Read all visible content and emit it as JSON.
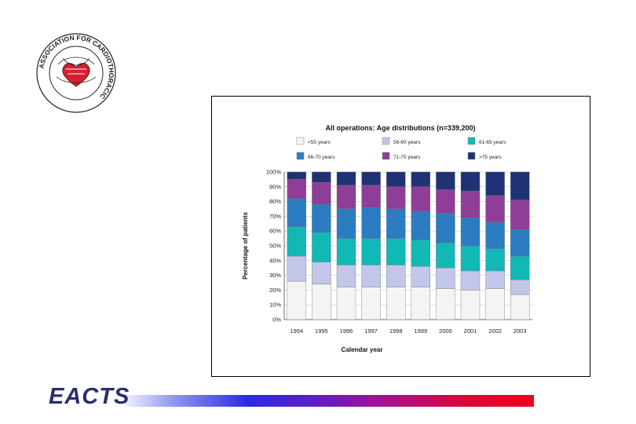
{
  "slide": {
    "logo_ring_text": "ASSOCIATION FOR CARDIOTHORACIC",
    "footer_brand": "EACTS"
  },
  "chart_data": {
    "type": "bar",
    "stacked": true,
    "title": "All operations: Age distributions (n=339,200)",
    "xlabel": "Calendar year",
    "ylabel": "Percentage of patients",
    "ylim": [
      0,
      100
    ],
    "y_ticks": [
      "0%",
      "10%",
      "20%",
      "30%",
      "40%",
      "50%",
      "60%",
      "70%",
      "80%",
      "90%",
      "100%"
    ],
    "legend_position": "top",
    "categories": [
      "1994",
      "1995",
      "1996",
      "1997",
      "1998",
      "1999",
      "2000",
      "2001",
      "2002",
      "2003"
    ],
    "series": [
      {
        "name": "<55 years",
        "color": "#f4f4f4",
        "values": [
          26,
          24,
          22,
          22,
          22,
          22,
          21,
          20,
          21,
          17
        ]
      },
      {
        "name": "56-60 years",
        "color": "#c2c6e8",
        "values": [
          17,
          15,
          15,
          15,
          15,
          14,
          14,
          13,
          12,
          10
        ]
      },
      {
        "name": "61-65 years",
        "color": "#12b8b6",
        "values": [
          20,
          20,
          18,
          18,
          18,
          18,
          17,
          17,
          15,
          16
        ]
      },
      {
        "name": "66-70 years",
        "color": "#2b7cc0",
        "values": [
          19,
          19,
          20,
          21,
          20,
          19,
          20,
          19,
          18,
          18
        ]
      },
      {
        "name": "71-75 years",
        "color": "#8e3e96",
        "values": [
          13,
          15,
          16,
          15,
          15,
          17,
          16,
          18,
          18,
          20
        ]
      },
      {
        "name": ">75 years",
        "color": "#1f3275",
        "values": [
          5,
          7,
          9,
          9,
          10,
          10,
          12,
          13,
          16,
          19
        ]
      }
    ]
  }
}
